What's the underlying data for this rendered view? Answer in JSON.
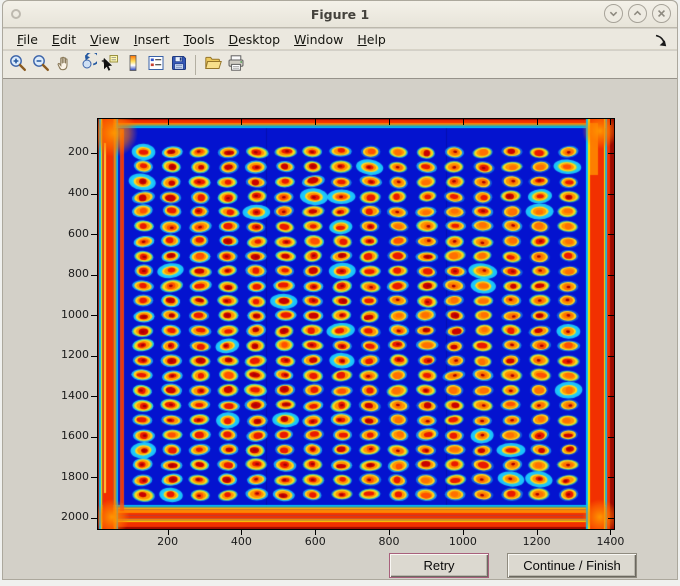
{
  "window": {
    "title": "Figure 1",
    "controls": [
      {
        "label": "minimize",
        "glyph": "chevron-down"
      },
      {
        "label": "maximize",
        "glyph": "chevron-up"
      },
      {
        "label": "close",
        "glyph": "x"
      }
    ]
  },
  "menubar": {
    "items": [
      "File",
      "Edit",
      "View",
      "Insert",
      "Tools",
      "Desktop",
      "Window",
      "Help"
    ],
    "dock_arrow_glyph": "curved-arrow-south-east"
  },
  "toolbar": {
    "buttons": [
      {
        "name": "zoom-in"
      },
      {
        "name": "zoom-out"
      },
      {
        "name": "pan"
      },
      {
        "name": "rotate-3d"
      },
      {
        "name": "data-cursor"
      },
      {
        "name": "insert-colorbar"
      },
      {
        "name": "insert-legend"
      },
      {
        "name": "save-figure"
      },
      {
        "name": "open-file"
      },
      {
        "name": "print-figure"
      }
    ],
    "separator_after_index": 7
  },
  "buttons": {
    "retry": "Retry",
    "continue": "Continue / Finish"
  },
  "chart_data": {
    "type": "heatmap",
    "title": "",
    "xlabel": "",
    "ylabel": "",
    "x_ticks": [
      200,
      400,
      600,
      800,
      1000,
      1200,
      1400
    ],
    "y_ticks": [
      200,
      400,
      600,
      800,
      1000,
      1200,
      1400,
      1600,
      1800,
      2000
    ],
    "xlim": [
      10,
      1411
    ],
    "ylim": [
      30,
      2057
    ],
    "y_axis_direction": "reversed-image-coordinates",
    "grid": false,
    "box": true,
    "colormap": "jet",
    "content": "Pseudocolor scan of a 384-well microplate: 24 rows by 16 columns of bright spots (red/dark-red cores, orange and yellow rings, cyan halos) on a deep blue background, framed by bright red plate edges with orange corner blobs; spots trend yellower toward the right columns",
    "spot_grid": {
      "rows": 24,
      "cols": 16
    },
    "palette": {
      "background_blue": "#0413cf",
      "edge_dark_red": "#9c0a00",
      "edge_red": "#f23000",
      "edge_orange": "#ff8400",
      "edge_amber": "#ffb400",
      "edge_yellow": "#ffd800",
      "edge_green": "#40dd90",
      "edge_cyan": "#00c8ff",
      "spot_halo_cyan": "#1ed7ff",
      "spot_green": "#78e65a",
      "spot_yellow": "#ffd81e",
      "spot_orange": "#ff9400",
      "spot_red": "#ea1800",
      "spot_dark_red": "#c80000",
      "spot_hot_orange": "#ff7000"
    }
  }
}
